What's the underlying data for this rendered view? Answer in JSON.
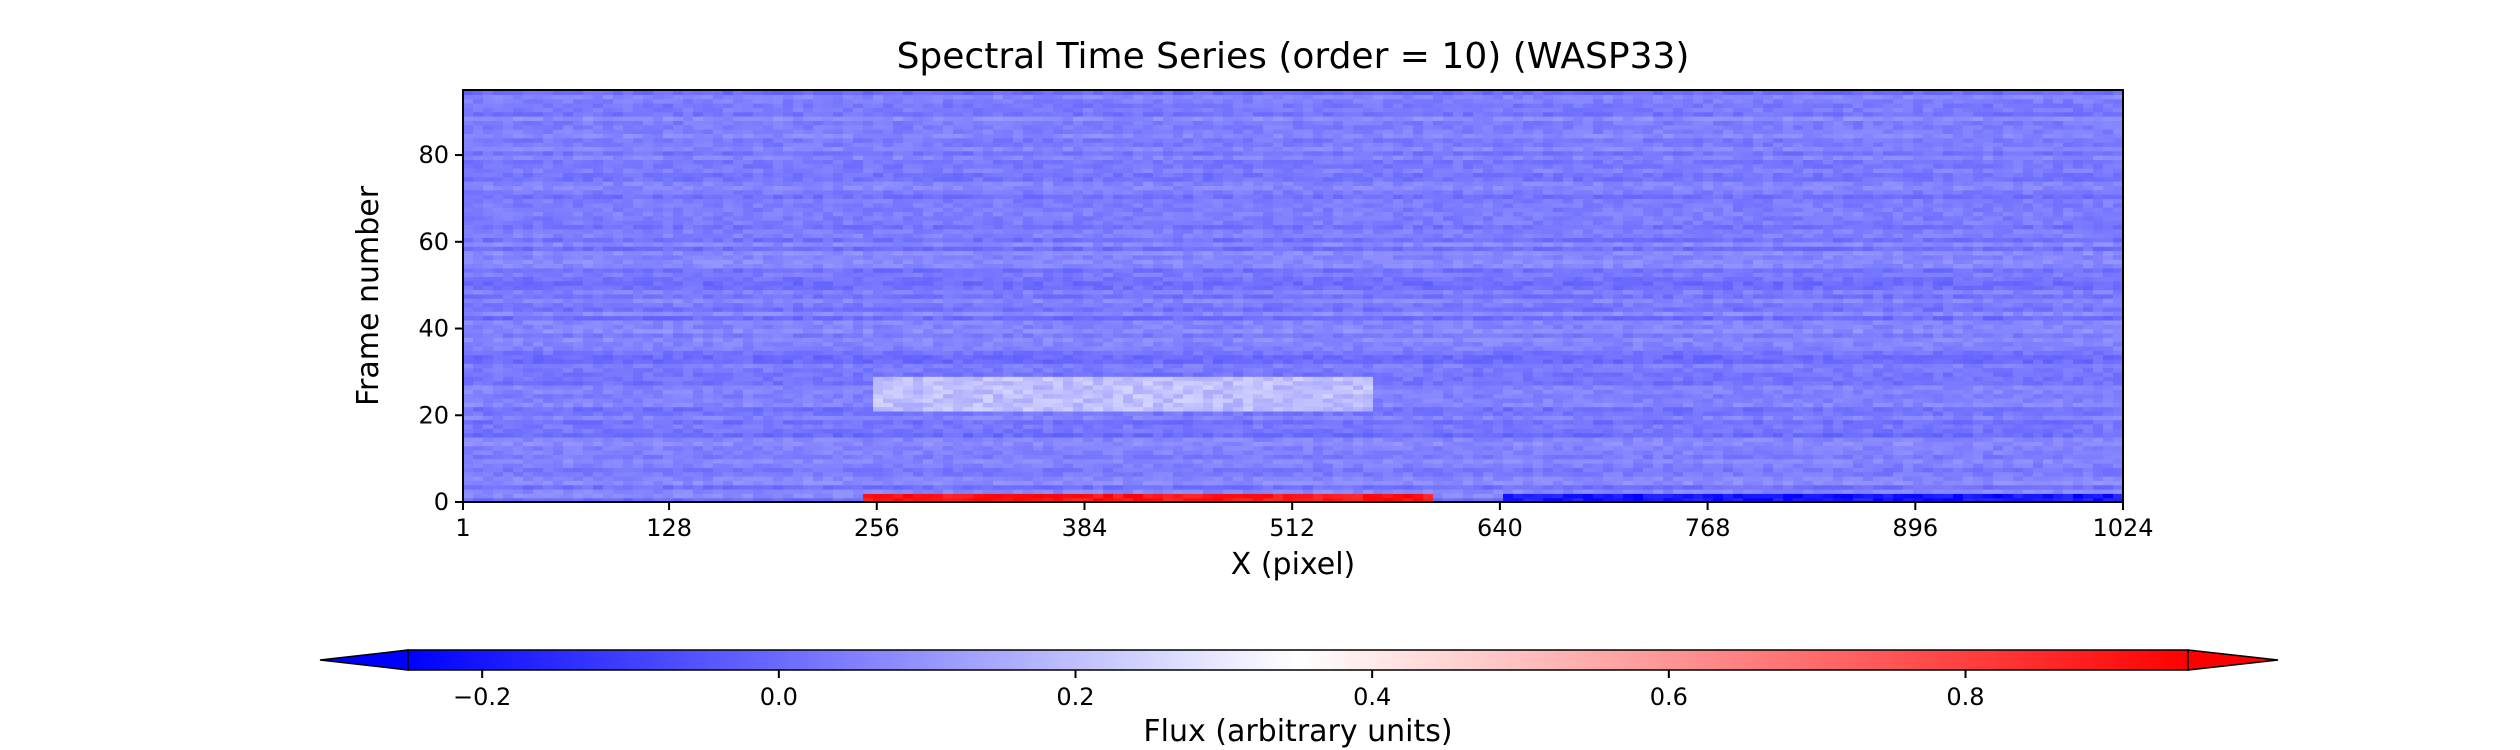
{
  "chart_data": {
    "type": "heatmap",
    "title": "Spectral Time Series (order = 10) (WASP33)",
    "xlabel": "X (pixel)",
    "ylabel": "Frame number",
    "xlim": [
      1,
      1024
    ],
    "ylim": [
      0,
      95
    ],
    "x_ticks": [
      1,
      128,
      256,
      384,
      512,
      640,
      768,
      896,
      1024
    ],
    "y_ticks": [
      0,
      20,
      40,
      60,
      80
    ],
    "grid": false,
    "colormap": "bwr",
    "colormap_colors": [
      "#0000ff",
      "#ffffff",
      "#ff0000"
    ],
    "color_range": [
      -0.25,
      0.95
    ],
    "colorbar": {
      "label": "Flux (arbitrary units)",
      "ticks": [
        -0.2,
        0.0,
        0.2,
        0.4,
        0.6,
        0.8
      ],
      "tick_labels": [
        "−0.2",
        "0.0",
        "0.2",
        "0.4",
        "0.6",
        "0.8"
      ],
      "extend": "both",
      "placement": "bottom"
    },
    "typical_value": 0.04,
    "features": [
      {
        "description": "high-flux band",
        "frames": [
          0,
          1
        ],
        "x_range": [
          250,
          600
        ],
        "value": 0.9
      },
      {
        "description": "low-flux band",
        "frames": [
          0,
          1
        ],
        "x_range": [
          640,
          1024
        ],
        "value": -0.2
      },
      {
        "description": "bright horizontal band",
        "frames": [
          21,
          28
        ],
        "x_range": [
          256,
          560
        ],
        "value": 0.2
      }
    ]
  }
}
